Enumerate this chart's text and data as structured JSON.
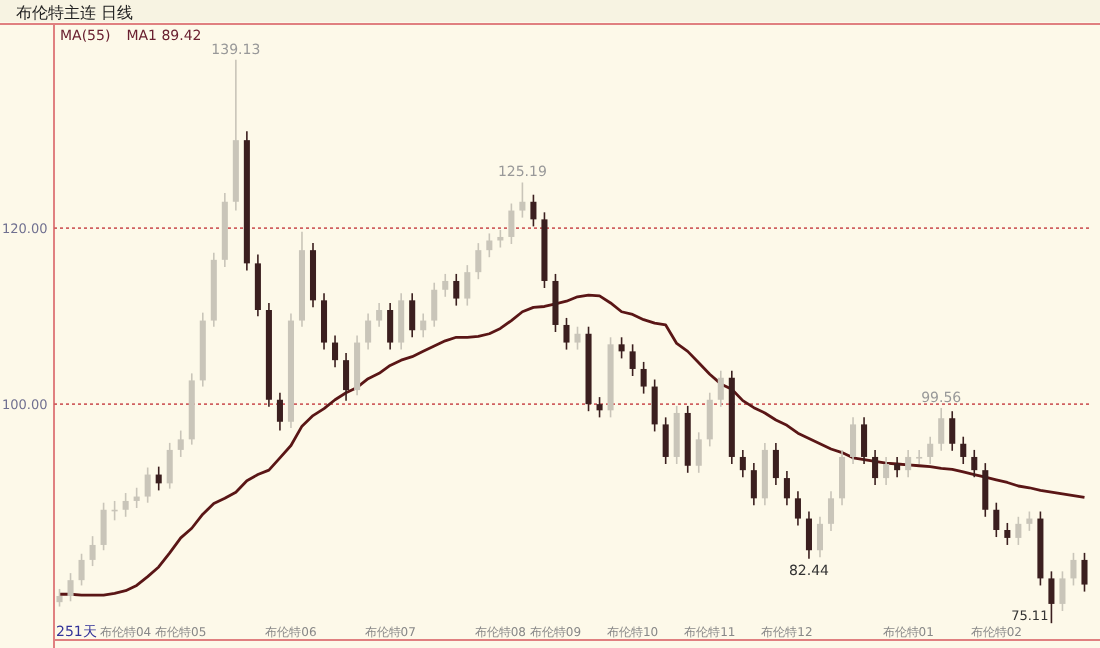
{
  "chart_data": {
    "type": "candlestick",
    "title": "布伦特主连 日线",
    "categories": [
      null,
      null,
      null,
      null,
      null,
      null,
      "布伦特04",
      null,
      null,
      null,
      null,
      "布伦特05",
      null,
      null,
      null,
      null,
      null,
      null,
      null,
      null,
      null,
      "布伦特06",
      null,
      null,
      null,
      null,
      null,
      null,
      null,
      null,
      "布伦特07",
      null,
      null,
      null,
      null,
      null,
      null,
      null,
      null,
      null,
      "布伦特08",
      null,
      null,
      null,
      null,
      "布伦特09",
      null,
      null,
      null,
      null,
      null,
      null,
      "布伦特10",
      null,
      null,
      null,
      null,
      null,
      null,
      "布伦特11",
      null,
      null,
      null,
      null,
      null,
      null,
      "布伦特12",
      null,
      null,
      null,
      null,
      null,
      null,
      null,
      null,
      null,
      null,
      "布伦特01",
      null,
      null,
      null,
      null,
      null,
      null,
      null,
      "布伦特02",
      null,
      null,
      null,
      null,
      null,
      null,
      null,
      null
    ],
    "ylim": [
      73.2,
      143.2
    ],
    "yticks": [
      {
        "value": 120,
        "label": "120.00"
      },
      {
        "value": 100,
        "label": "100.00"
      }
    ],
    "grid": "y",
    "ohlc": [
      [
        77.5,
        79,
        77,
        78.2
      ],
      [
        78.2,
        80.8,
        77.6,
        80
      ],
      [
        80,
        83,
        79.4,
        82.3
      ],
      [
        82.3,
        85,
        81.6,
        84
      ],
      [
        84,
        88.8,
        83.4,
        88
      ],
      [
        88,
        89,
        86.8,
        88
      ],
      [
        88,
        89.9,
        87.2,
        89
      ],
      [
        89,
        90.5,
        88.2,
        89.5
      ],
      [
        89.5,
        92.8,
        88.8,
        92
      ],
      [
        92,
        92.9,
        90.2,
        91
      ],
      [
        91,
        95.6,
        90.4,
        94.8
      ],
      [
        94.8,
        97,
        94,
        96
      ],
      [
        96,
        103.5,
        95.4,
        102.7
      ],
      [
        102.7,
        110.4,
        102,
        109.5
      ],
      [
        109.5,
        117.2,
        108.8,
        116.4
      ],
      [
        116.4,
        124,
        115.6,
        123
      ],
      [
        123,
        139.13,
        122,
        130
      ],
      [
        130,
        131,
        115.2,
        116
      ],
      [
        116,
        117,
        110,
        110.7
      ],
      [
        110.7,
        111.5,
        99.7,
        100.5
      ],
      [
        100.5,
        101.3,
        97,
        98
      ],
      [
        98,
        110.3,
        97.3,
        109.5
      ],
      [
        109.5,
        119.6,
        108.8,
        117.5
      ],
      [
        117.5,
        118.3,
        111,
        111.8
      ],
      [
        111.8,
        112.6,
        106.2,
        107
      ],
      [
        107,
        107.8,
        104.2,
        105
      ],
      [
        105,
        105.8,
        100.4,
        101.6
      ],
      [
        101.6,
        107.8,
        101,
        107
      ],
      [
        107,
        110.3,
        106.2,
        109.5
      ],
      [
        109.5,
        111.5,
        108.8,
        110.7
      ],
      [
        110.7,
        111.5,
        106.2,
        107
      ],
      [
        107,
        112.6,
        106.2,
        111.8
      ],
      [
        111.8,
        112.6,
        107.6,
        108.4
      ],
      [
        108.4,
        110.3,
        107.6,
        109.5
      ],
      [
        109.5,
        113.8,
        108.8,
        113
      ],
      [
        113,
        114.8,
        112.2,
        114
      ],
      [
        114,
        114.8,
        111.2,
        112
      ],
      [
        112,
        115.8,
        111.2,
        115
      ],
      [
        115,
        118.3,
        114.2,
        117.5
      ],
      [
        117.5,
        119.4,
        116.7,
        118.6
      ],
      [
        118.6,
        119.8,
        117.8,
        119
      ],
      [
        119,
        122.8,
        118.2,
        122
      ],
      [
        122,
        125.19,
        121.2,
        123
      ],
      [
        123,
        123.8,
        120.2,
        121
      ],
      [
        121,
        121.8,
        113.2,
        114
      ],
      [
        114,
        114.8,
        108.2,
        109
      ],
      [
        109,
        109.8,
        106.2,
        107
      ],
      [
        107,
        108.8,
        106.2,
        108
      ],
      [
        108,
        108.8,
        99.2,
        100
      ],
      [
        100,
        100.8,
        98.5,
        99.3
      ],
      [
        99.3,
        107.6,
        98.5,
        106.8
      ],
      [
        106.8,
        107.6,
        105.2,
        106
      ],
      [
        106,
        106.8,
        103.2,
        104
      ],
      [
        104,
        104.8,
        101.2,
        102
      ],
      [
        102,
        102.8,
        96.9,
        97.7
      ],
      [
        97.7,
        98.5,
        93.2,
        94
      ],
      [
        94,
        99.8,
        93.2,
        99
      ],
      [
        99,
        99.8,
        92.2,
        93
      ],
      [
        93,
        96.8,
        92.2,
        96
      ],
      [
        96,
        101.3,
        95.2,
        100.5
      ],
      [
        100.5,
        103.8,
        99.7,
        103
      ],
      [
        103,
        103.8,
        93.2,
        94
      ],
      [
        94,
        94.8,
        91.7,
        92.5
      ],
      [
        92.5,
        93.3,
        88.5,
        89.3
      ],
      [
        89.3,
        95.6,
        88.5,
        94.8
      ],
      [
        94.8,
        95.6,
        90.8,
        91.6
      ],
      [
        91.6,
        92.4,
        88.5,
        89.3
      ],
      [
        89.3,
        90.1,
        86.2,
        87
      ],
      [
        87,
        87.8,
        82.44,
        83.4
      ],
      [
        83.4,
        87.2,
        82.6,
        86.4
      ],
      [
        86.4,
        90.1,
        85.6,
        89.3
      ],
      [
        89.3,
        94.8,
        88.5,
        94
      ],
      [
        94,
        98.5,
        93.2,
        97.7
      ],
      [
        97.7,
        98.5,
        93.2,
        94
      ],
      [
        94,
        94.8,
        90.8,
        91.6
      ],
      [
        91.6,
        94,
        90.8,
        93.2
      ],
      [
        93.2,
        94,
        91.7,
        92.5
      ],
      [
        92.5,
        94.8,
        91.7,
        94
      ],
      [
        94,
        94.8,
        93.2,
        94
      ],
      [
        94,
        96.3,
        93.2,
        95.5
      ],
      [
        95.5,
        99.56,
        94.7,
        98.4
      ],
      [
        98.4,
        99.2,
        94.7,
        95.5
      ],
      [
        95.5,
        96.3,
        93.2,
        94
      ],
      [
        94,
        94.8,
        91.7,
        92.5
      ],
      [
        92.5,
        93.3,
        87.2,
        88
      ],
      [
        88,
        88.8,
        84.9,
        85.7
      ],
      [
        85.7,
        86.5,
        84,
        84.8
      ],
      [
        84.8,
        87.2,
        84,
        86.4
      ],
      [
        86.4,
        87.8,
        85.6,
        87
      ],
      [
        87,
        87.8,
        79.4,
        80.2
      ],
      [
        80.2,
        81,
        75.11,
        77.3
      ],
      [
        77.3,
        81,
        76.5,
        80.2
      ],
      [
        80.2,
        83.1,
        79.4,
        82.3
      ],
      [
        82.3,
        83.1,
        78.7,
        79.5
      ]
    ],
    "colors": [
      "#c9c5b9",
      "#c9c5b9",
      "#c9c5b9",
      "#c9c5b9",
      "#c9c5b9",
      "#c9c5b9",
      "#c9c5b9",
      "#c9c5b9",
      "#c9c5b9",
      "#3b1f1f",
      "#c9c5b9",
      "#c9c5b9",
      "#c9c5b9",
      "#c9c5b9",
      "#c9c5b9",
      "#c9c5b9",
      "#c9c5b9",
      "#3b1f1f",
      "#3b1f1f",
      "#3b1f1f",
      "#3b1f1f",
      "#c9c5b9",
      "#c9c5b9",
      "#3b1f1f",
      "#3b1f1f",
      "#3b1f1f",
      "#3b1f1f",
      "#c9c5b9",
      "#c9c5b9",
      "#c9c5b9",
      "#3b1f1f",
      "#c9c5b9",
      "#3b1f1f",
      "#c9c5b9",
      "#c9c5b9",
      "#c9c5b9",
      "#3b1f1f",
      "#c9c5b9",
      "#c9c5b9",
      "#c9c5b9",
      "#c9c5b9",
      "#c9c5b9",
      "#c9c5b9",
      "#3b1f1f",
      "#3b1f1f",
      "#3b1f1f",
      "#3b1f1f",
      "#c9c5b9",
      "#3b1f1f",
      "#3b1f1f",
      "#c9c5b9",
      "#3b1f1f",
      "#3b1f1f",
      "#3b1f1f",
      "#3b1f1f",
      "#3b1f1f",
      "#c9c5b9",
      "#3b1f1f",
      "#c9c5b9",
      "#c9c5b9",
      "#c9c5b9",
      "#3b1f1f",
      "#3b1f1f",
      "#3b1f1f",
      "#c9c5b9",
      "#3b1f1f",
      "#3b1f1f",
      "#3b1f1f",
      "#3b1f1f",
      "#c9c5b9",
      "#c9c5b9",
      "#c9c5b9",
      "#c9c5b9",
      "#3b1f1f",
      "#3b1f1f",
      "#c9c5b9",
      "#3b1f1f",
      "#c9c5b9",
      "#c9c5b9",
      "#c9c5b9",
      "#c9c5b9",
      "#3b1f1f",
      "#3b1f1f",
      "#3b1f1f",
      "#3b1f1f",
      "#3b1f1f",
      "#3b1f1f",
      "#c9c5b9",
      "#c9c5b9",
      "#3b1f1f",
      "#3b1f1f",
      "#c9c5b9",
      "#c9c5b9",
      "#3b1f1f"
    ],
    "series": [
      {
        "type": "line",
        "color": "#5a1616",
        "values": [
          78.4,
          78.4,
          78.3,
          78.3,
          78.3,
          78.5,
          78.8,
          79.4,
          80.4,
          81.5,
          83.1,
          84.8,
          85.9,
          87.5,
          88.7,
          89.3,
          90,
          91.3,
          92,
          92.5,
          93.9,
          95.3,
          97.5,
          98.7,
          99.5,
          100.5,
          101.3,
          101.9,
          102.9,
          103.5,
          104.4,
          105,
          105.4,
          106,
          106.6,
          107.2,
          107.6,
          107.6,
          107.7,
          108,
          108.6,
          109.5,
          110.5,
          111,
          111.1,
          111.4,
          111.7,
          112.2,
          112.4,
          112.3,
          111.5,
          110.5,
          110.2,
          109.6,
          109.2,
          109,
          106.9,
          106,
          104.7,
          103.4,
          102.3,
          101.7,
          100.4,
          99.6,
          99,
          98.2,
          97.6,
          96.7,
          96.1,
          95.5,
          94.9,
          94.5,
          93.9,
          93.7,
          93.5,
          93.3,
          93.2,
          93.1,
          93,
          92.9,
          92.7,
          92.6,
          92.3,
          92,
          91.7,
          91.4,
          91.1,
          90.7,
          90.5,
          90.2,
          90,
          89.8,
          89.6,
          89.4
        ]
      }
    ],
    "annotations": [
      "MA(55)",
      "MA1 89.42",
      "251天",
      {
        "text": "139.13",
        "y": 139.13
      },
      {
        "text": "125.19",
        "y": 125.19
      },
      {
        "text": "99.56",
        "y": 99.56
      },
      {
        "text": "82.44",
        "y": 82.44
      },
      "75.11"
    ]
  }
}
